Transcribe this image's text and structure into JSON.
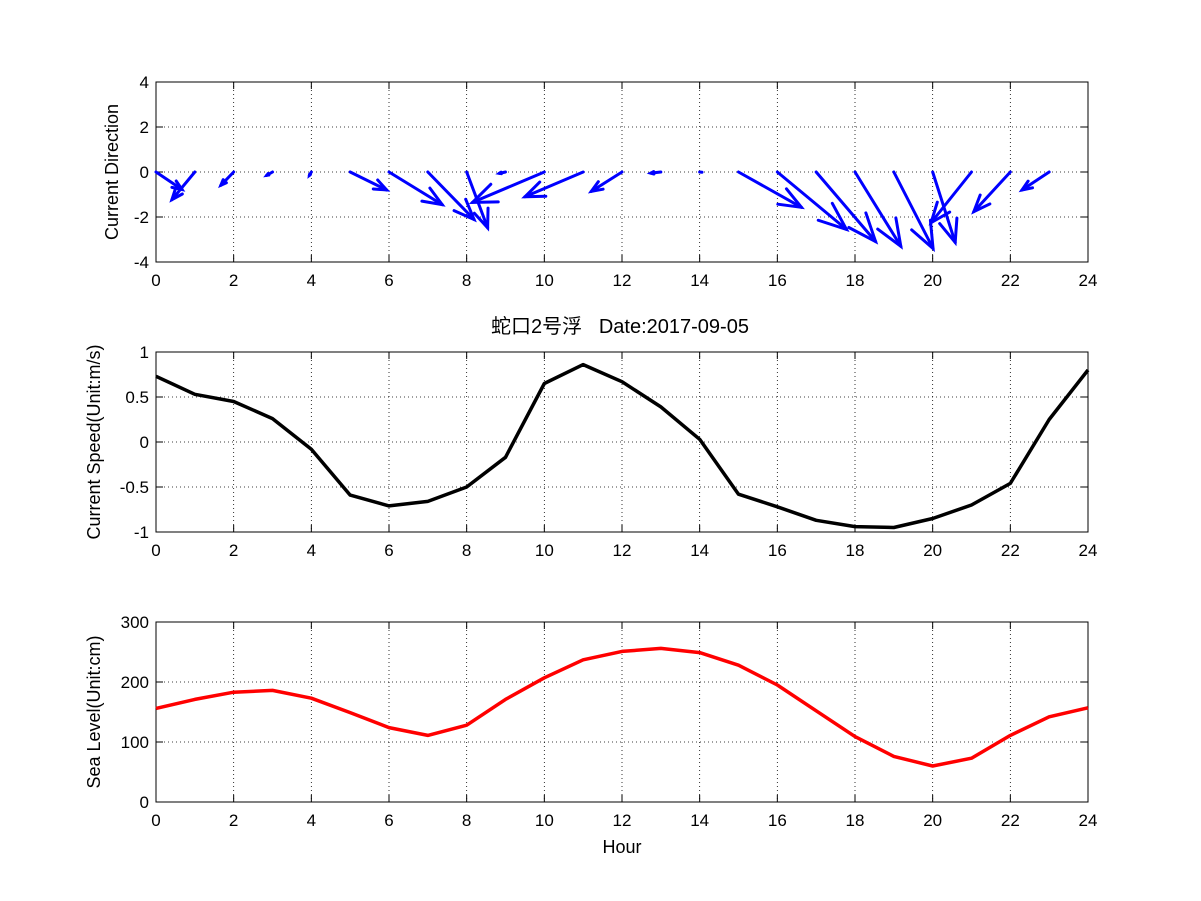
{
  "chart_data": [
    {
      "type": "quiver",
      "ylabel": "Current Direction",
      "xlim": [
        0,
        24
      ],
      "ylim": [
        -4,
        4
      ],
      "xticks": [
        0,
        2,
        4,
        6,
        8,
        10,
        12,
        14,
        16,
        18,
        20,
        22,
        24
      ],
      "yticks": [
        -4,
        -2,
        0,
        2,
        4
      ],
      "grid": true,
      "color": "#0000ff",
      "x": [
        0,
        1,
        2,
        3,
        4,
        5,
        6,
        7,
        8,
        9,
        10,
        11,
        12,
        13,
        14,
        15,
        16,
        17,
        18,
        19,
        20,
        21,
        22,
        23
      ],
      "u": [
        0.67,
        -0.59,
        -0.33,
        -0.15,
        -0.05,
        0.94,
        1.37,
        1.19,
        0.54,
        -0.16,
        -1.85,
        -1.5,
        -0.79,
        -0.26,
        0.06,
        1.62,
        1.78,
        1.53,
        1.18,
        1.01,
        0.58,
        -1.04,
        -0.94,
        -0.7
      ],
      "v": [
        -0.78,
        -1.23,
        -0.59,
        -0.15,
        -0.15,
        -0.8,
        -1.45,
        -2.11,
        -2.48,
        -0.06,
        -1.35,
        -1.1,
        -0.86,
        -0.05,
        -0.01,
        -1.57,
        -2.55,
        -3.09,
        -3.3,
        -3.4,
        -3.13,
        -2.25,
        -1.76,
        -0.8
      ]
    },
    {
      "type": "line",
      "title": "蛇口2号浮   Date:2017-09-05",
      "ylabel": "Current Speed(Unit:m/s)",
      "xlim": [
        0,
        24
      ],
      "ylim": [
        -1,
        1
      ],
      "xticks": [
        0,
        2,
        4,
        6,
        8,
        10,
        12,
        14,
        16,
        18,
        20,
        22,
        24
      ],
      "yticks": [
        -1,
        -0.5,
        0,
        0.5,
        1
      ],
      "ytick_labels": [
        "-1",
        "-0.5",
        "0",
        "0.5",
        "1"
      ],
      "grid": true,
      "color": "#000000",
      "x": [
        0,
        1,
        2,
        3,
        4,
        5,
        6,
        7,
        8,
        9,
        10,
        11,
        12,
        13,
        14,
        15,
        16,
        17,
        18,
        19,
        20,
        21,
        22,
        23,
        24
      ],
      "y": [
        0.73,
        0.53,
        0.45,
        0.26,
        -0.08,
        -0.59,
        -0.71,
        -0.66,
        -0.5,
        -0.17,
        0.65,
        0.86,
        0.67,
        0.39,
        0.03,
        -0.58,
        -0.72,
        -0.87,
        -0.94,
        -0.95,
        -0.85,
        -0.7,
        -0.46,
        0.25,
        0.8
      ]
    },
    {
      "type": "line",
      "xlabel": "Hour",
      "ylabel": "Sea Level(Unit:cm)",
      "xlim": [
        0,
        24
      ],
      "ylim": [
        0,
        300
      ],
      "xticks": [
        0,
        2,
        4,
        6,
        8,
        10,
        12,
        14,
        16,
        18,
        20,
        22,
        24
      ],
      "yticks": [
        0,
        100,
        200,
        300
      ],
      "grid": true,
      "color": "#ff0000",
      "x": [
        0,
        1,
        2,
        3,
        4,
        5,
        6,
        7,
        8,
        9,
        10,
        11,
        12,
        13,
        14,
        15,
        16,
        17,
        18,
        19,
        20,
        21,
        22,
        23,
        24
      ],
      "y": [
        156,
        171,
        183,
        186,
        173,
        149,
        124,
        111,
        128,
        171,
        207,
        237,
        251,
        256,
        249,
        228,
        195,
        152,
        109,
        76,
        60,
        73,
        111,
        142,
        157
      ]
    }
  ]
}
